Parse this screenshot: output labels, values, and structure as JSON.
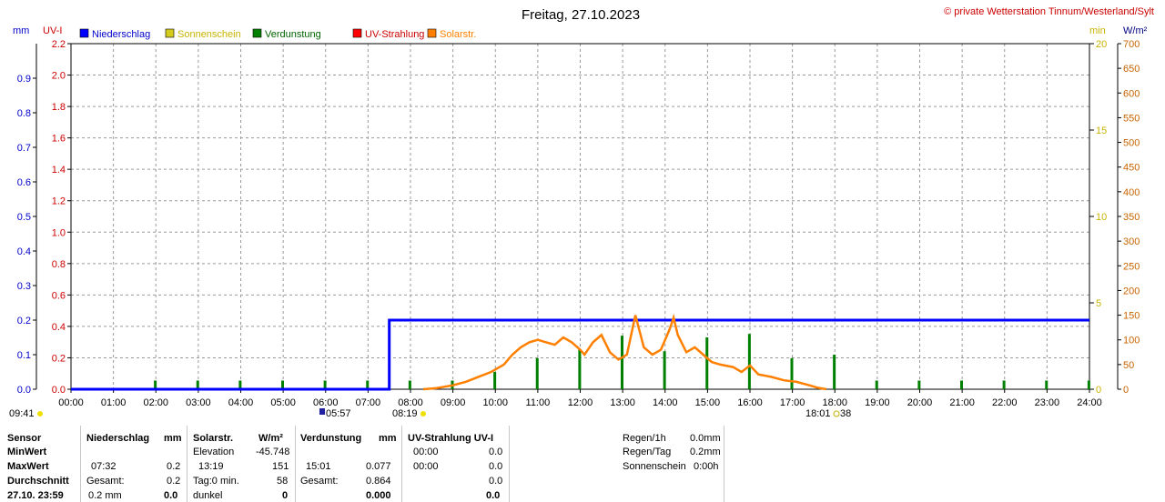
{
  "header": {
    "title": "Freitag, 27.10.2023",
    "credit": "© private Wetterstation Tinnum/Westerland/Sylt"
  },
  "axes": {
    "left_mm_unit": "mm",
    "left_uv_unit": "UV-I",
    "right_min_unit": "min",
    "right_wm2_unit": "W/m²",
    "mm_ticks": [
      "0.0",
      "0.1",
      "0.2",
      "0.3",
      "0.4",
      "0.5",
      "0.6",
      "0.7",
      "0.8",
      "0.9"
    ],
    "uv_ticks": [
      "0.0",
      "0.2",
      "0.4",
      "0.6",
      "0.8",
      "1.0",
      "1.2",
      "1.4",
      "1.6",
      "1.8",
      "2.0",
      "2.2"
    ],
    "min_ticks": [
      "0",
      "5",
      "10",
      "15",
      "20"
    ],
    "wm2_ticks": [
      "0",
      "50",
      "100",
      "150",
      "200",
      "250",
      "300",
      "350",
      "400",
      "450",
      "500",
      "550",
      "600",
      "650",
      "700"
    ],
    "x_ticks": [
      "00:00",
      "01:00",
      "02:00",
      "03:00",
      "04:00",
      "05:00",
      "06:00",
      "07:00",
      "08:00",
      "09:00",
      "10:00",
      "11:00",
      "12:00",
      "13:00",
      "14:00",
      "15:00",
      "16:00",
      "17:00",
      "18:00",
      "19:00",
      "20:00",
      "21:00",
      "22:00",
      "23:00",
      "24:00"
    ]
  },
  "legend": [
    {
      "label": "Niederschlag",
      "color": "#0000ff",
      "text_color": "#0000cc"
    },
    {
      "label": "Sonnenschein",
      "color": "#d4cc1c",
      "text_color": "#c8b400"
    },
    {
      "label": "Verdunstung",
      "color": "#008000",
      "text_color": "#006400"
    },
    {
      "label": "UV-Strahlung",
      "color": "#ff0000",
      "text_color": "#cc0000"
    },
    {
      "label": "Solarstr.",
      "color": "#ff8000",
      "text_color": "#ff8000"
    }
  ],
  "markers": {
    "moon_time": "09:41",
    "sunrise_label": "05:57",
    "sun_label": "08:19",
    "sunset_label": "18:01",
    "sunset_extra": "38"
  },
  "chart_data": {
    "type": "line",
    "title": "Freitag, 27.10.2023",
    "x_range_hours": [
      0,
      24
    ],
    "ylim_mm": [
      0,
      1.0
    ],
    "ylim_uv": [
      0,
      2.2
    ],
    "ylim_min": [
      0,
      20
    ],
    "ylim_wm2": [
      0,
      700
    ],
    "grid": true,
    "legend_position": "top-left",
    "series": [
      {
        "name": "Niederschlag",
        "unit": "mm",
        "color": "#0000ff",
        "points": [
          [
            0,
            0
          ],
          [
            7.5,
            0
          ],
          [
            7.5,
            0.2
          ],
          [
            24,
            0.2
          ]
        ]
      },
      {
        "name": "Verdunstung",
        "unit": "min-axis bars",
        "color": "#008000",
        "bar_hours": [
          1,
          2,
          3,
          4,
          5,
          6,
          7,
          8,
          9,
          10,
          11,
          12,
          13,
          14,
          15,
          16,
          17,
          18,
          19,
          20,
          21,
          22,
          23
        ],
        "bar_values": [
          0.5,
          0.5,
          0.5,
          0.5,
          0.5,
          0.5,
          0.5,
          0.5,
          1.0,
          1.8,
          2.3,
          3.1,
          2.2,
          3.0,
          3.2,
          1.8,
          2.0,
          0.5,
          0.5,
          0.5,
          0.5,
          0.5,
          0.5
        ]
      },
      {
        "name": "Solarstr.",
        "unit": "W/m²",
        "color": "#ff8000",
        "points": [
          [
            8.3,
            0
          ],
          [
            8.6,
            2
          ],
          [
            9.0,
            8
          ],
          [
            9.3,
            15
          ],
          [
            9.6,
            25
          ],
          [
            9.9,
            35
          ],
          [
            10.2,
            50
          ],
          [
            10.4,
            70
          ],
          [
            10.6,
            85
          ],
          [
            10.8,
            95
          ],
          [
            11.0,
            100
          ],
          [
            11.2,
            95
          ],
          [
            11.4,
            90
          ],
          [
            11.6,
            105
          ],
          [
            11.8,
            95
          ],
          [
            12.0,
            80
          ],
          [
            12.1,
            70
          ],
          [
            12.3,
            95
          ],
          [
            12.5,
            110
          ],
          [
            12.7,
            75
          ],
          [
            12.9,
            60
          ],
          [
            13.1,
            70
          ],
          [
            13.3,
            150
          ],
          [
            13.5,
            85
          ],
          [
            13.7,
            70
          ],
          [
            13.9,
            80
          ],
          [
            14.1,
            120
          ],
          [
            14.2,
            145
          ],
          [
            14.3,
            110
          ],
          [
            14.5,
            75
          ],
          [
            14.7,
            85
          ],
          [
            14.9,
            70
          ],
          [
            15.1,
            55
          ],
          [
            15.3,
            50
          ],
          [
            15.6,
            45
          ],
          [
            15.8,
            35
          ],
          [
            16.0,
            48
          ],
          [
            16.2,
            30
          ],
          [
            16.5,
            25
          ],
          [
            16.8,
            18
          ],
          [
            17.1,
            15
          ],
          [
            17.4,
            8
          ],
          [
            17.6,
            3
          ],
          [
            17.8,
            0
          ]
        ]
      },
      {
        "name": "UV-Strahlung",
        "unit": "UV-I",
        "color": "#ff0000",
        "points": []
      }
    ]
  },
  "stats": {
    "sensor": {
      "h": "Sensor",
      "min": "MinWert",
      "max": "MaxWert",
      "avg": "Durchschnitt",
      "date": "27.10. 23:59"
    },
    "rain": {
      "h": "Niederschlag",
      "unit": "mm",
      "max_time": "07:32",
      "max_val": "0.2",
      "total_label": "Gesamt:",
      "total_val": "0.2",
      "day_val": "0.2 mm",
      "day_sum": "0.0"
    },
    "solar": {
      "h": "Solarstr.",
      "unit": "W/m²",
      "elev_label": "Elevation",
      "elev_val": "-45.748",
      "max_time": "13:19",
      "max_val": "151",
      "day_label": "Tag:0 min.",
      "day_val": "58",
      "dark_label": "dunkel",
      "dark_val": "0"
    },
    "evap": {
      "h": "Verdunstung",
      "unit": "mm",
      "max_time": "15:01",
      "max_val": "0.077",
      "total_label": "Gesamt:",
      "total_val": "0.864",
      "day_sum": "0.000"
    },
    "uv": {
      "h": "UV-Strahlung UV-I",
      "min_time": "00:00",
      "min_val": "0.0",
      "max_time": "00:00",
      "max_val": "0.0",
      "avg_val": "0.0",
      "day_sum": "0.0"
    },
    "summary": {
      "rain1h_label": "Regen/1h",
      "rain1h_val": "0.0mm",
      "rainday_label": "Regen/Tag",
      "rainday_val": "0.2mm",
      "sun_label": "Sonnenschein",
      "sun_val": "0:00h"
    }
  }
}
